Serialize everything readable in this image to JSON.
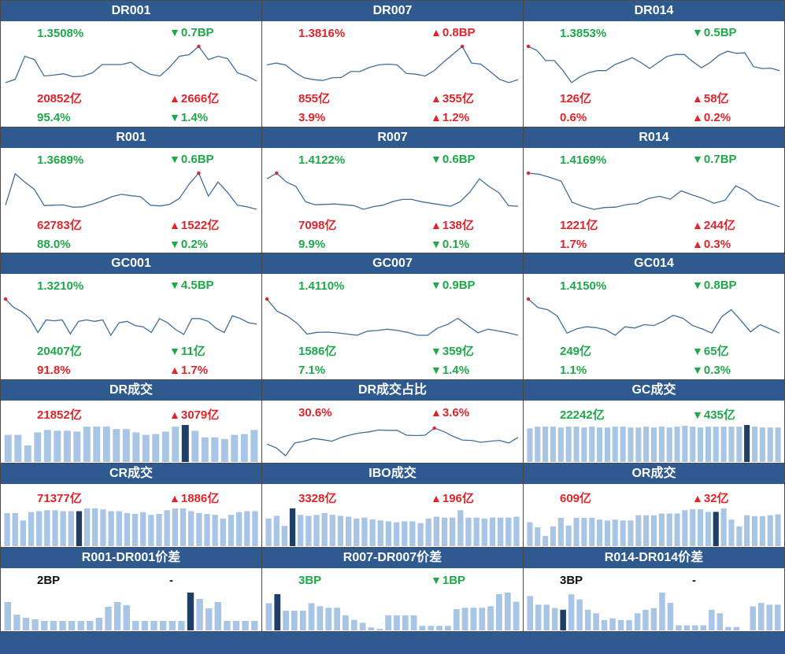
{
  "colors": {
    "header_bg": "#2e5a8f",
    "up": "#e0242b",
    "down": "#1fa84a",
    "line": "#3f6f9a",
    "bar": "#a9c5e6",
    "bar_highlight": "#1f3e66"
  },
  "panels": [
    {
      "title": "DR001",
      "kind": "line",
      "row1": {
        "left": "1.3508%",
        "left_color": "green",
        "dir": "down",
        "right": "0.7BP"
      },
      "row2": {
        "left": "20852亿",
        "left_color": "red",
        "dir": "up",
        "right": "2666亿"
      },
      "row3": {
        "left": "95.4%",
        "left_color": "green",
        "dir": "down",
        "right": "1.4%"
      },
      "series": [
        1.347,
        1.348,
        1.355,
        1.354,
        1.349,
        1.3493,
        1.3497,
        1.3488,
        1.349,
        1.35,
        1.3525,
        1.3525,
        1.3525,
        1.3532,
        1.351,
        1.3495,
        1.349,
        1.3517,
        1.355,
        1.3555,
        1.358,
        1.354,
        1.355,
        1.3543,
        1.35,
        1.349,
        1.3475
      ],
      "highlight_index": 20
    },
    {
      "title": "DR007",
      "kind": "line",
      "row1": {
        "left": "1.3816%",
        "left_color": "red",
        "dir": "up",
        "right": "0.8BP"
      },
      "row2": {
        "left": "855亿",
        "left_color": "red",
        "dir": "up",
        "right": "355亿"
      },
      "row3": {
        "left": "3.9%",
        "left_color": "red",
        "dir": "up",
        "right": "1.2%"
      },
      "series": [
        1.376,
        1.3765,
        1.376,
        1.374,
        1.3725,
        1.372,
        1.3718,
        1.3725,
        1.3726,
        1.3742,
        1.3742,
        1.3753,
        1.376,
        1.3762,
        1.376,
        1.3737,
        1.3735,
        1.373,
        1.3745,
        1.3768,
        1.3789,
        1.381,
        1.3765,
        1.3762,
        1.3742,
        1.3721,
        1.3712,
        1.372
      ],
      "highlight_index": 21
    },
    {
      "title": "DR014",
      "kind": "line",
      "row1": {
        "left": "1.3853%",
        "left_color": "green",
        "dir": "down",
        "right": "0.5BP"
      },
      "row2": {
        "left": "126亿",
        "left_color": "red",
        "dir": "up",
        "right": "58亿"
      },
      "row3": {
        "left": "0.6%",
        "left_color": "red",
        "dir": "up",
        "right": "0.2%"
      },
      "series": [
        1.392,
        1.391,
        1.3885,
        1.3885,
        1.386,
        1.383,
        1.3845,
        1.3855,
        1.386,
        1.386,
        1.3875,
        1.3883,
        1.3892,
        1.388,
        1.3865,
        1.388,
        1.3895,
        1.39,
        1.39,
        1.3882,
        1.3867,
        1.388,
        1.3898,
        1.3908,
        1.3903,
        1.3904,
        1.387,
        1.3865,
        1.3866,
        1.386
      ],
      "highlight_index": 0
    },
    {
      "title": "R001",
      "kind": "line",
      "row1": {
        "left": "1.3689%",
        "left_color": "green",
        "dir": "down",
        "right": "0.6BP"
      },
      "row2": {
        "left": "62783亿",
        "left_color": "red",
        "dir": "up",
        "right": "1522亿"
      },
      "row3": {
        "left": "88.0%",
        "left_color": "green",
        "dir": "down",
        "right": "0.2%"
      },
      "series": [
        1.36,
        1.375,
        1.371,
        1.3675,
        1.3598,
        1.36,
        1.3601,
        1.359,
        1.3592,
        1.3605,
        1.362,
        1.364,
        1.3652,
        1.3645,
        1.364,
        1.36,
        1.3596,
        1.3604,
        1.3632,
        1.37,
        1.3753,
        1.3643,
        1.3711,
        1.366,
        1.36,
        1.3592,
        1.358
      ],
      "highlight_index": 20
    },
    {
      "title": "R007",
      "kind": "line",
      "row1": {
        "left": "1.4122%",
        "left_color": "green",
        "dir": "down",
        "right": "0.6BP"
      },
      "row2": {
        "left": "7098亿",
        "left_color": "red",
        "dir": "up",
        "right": "138亿"
      },
      "row3": {
        "left": "9.9%",
        "left_color": "green",
        "dir": "down",
        "right": "0.1%"
      },
      "series": [
        1.412,
        1.4135,
        1.4112,
        1.41,
        1.406,
        1.4052,
        1.4053,
        1.4054,
        1.4052,
        1.405,
        1.404,
        1.4047,
        1.4051,
        1.406,
        1.4066,
        1.4066,
        1.406,
        1.4056,
        1.4052,
        1.4048,
        1.406,
        1.4085,
        1.412,
        1.41,
        1.4084,
        1.405,
        1.4048
      ],
      "highlight_index": 1
    },
    {
      "title": "R014",
      "kind": "line",
      "row1": {
        "left": "1.4169%",
        "left_color": "green",
        "dir": "down",
        "right": "0.7BP"
      },
      "row2": {
        "left": "1221亿",
        "left_color": "red",
        "dir": "up",
        "right": "244亿"
      },
      "row3": {
        "left": "1.7%",
        "left_color": "red",
        "dir": "up",
        "right": "0.3%"
      },
      "series": [
        1.422,
        1.4217,
        1.4208,
        1.4198,
        1.414,
        1.4128,
        1.412,
        1.4125,
        1.4126,
        1.4133,
        1.4136,
        1.415,
        1.4156,
        1.4148,
        1.4171,
        1.416,
        1.415,
        1.4137,
        1.4145,
        1.4185,
        1.417,
        1.4147,
        1.4138,
        1.4127
      ],
      "highlight_index": 0
    },
    {
      "title": "GC001",
      "kind": "line",
      "row1": {
        "left": "1.3210%",
        "left_color": "green",
        "dir": "down",
        "right": "4.5BP"
      },
      "row2": {
        "left": "20407亿",
        "left_color": "green",
        "dir": "down",
        "right": "11亿"
      },
      "row3": {
        "left": "91.8%",
        "left_color": "red",
        "dir": "up",
        "right": "1.7%"
      },
      "series": [
        1.33,
        1.327,
        1.3255,
        1.323,
        1.318,
        1.3225,
        1.3222,
        1.3225,
        1.3175,
        1.322,
        1.3225,
        1.322,
        1.3225,
        1.317,
        1.3215,
        1.322,
        1.3205,
        1.32,
        1.318,
        1.323,
        1.3215,
        1.319,
        1.3173,
        1.323,
        1.323,
        1.322,
        1.3195,
        1.318,
        1.324,
        1.323,
        1.3215,
        1.321
      ],
      "highlight_index": 0
    },
    {
      "title": "GC007",
      "kind": "line",
      "row1": {
        "left": "1.4110%",
        "left_color": "green",
        "dir": "down",
        "right": "0.9BP"
      },
      "row2": {
        "left": "1586亿",
        "left_color": "green",
        "dir": "down",
        "right": "359亿"
      },
      "row3": {
        "left": "7.1%",
        "left_color": "green",
        "dir": "down",
        "right": "1.4%"
      },
      "series": [
        1.42,
        1.415,
        1.413,
        1.41,
        1.4055,
        1.4062,
        1.4063,
        1.406,
        1.4055,
        1.405,
        1.4067,
        1.407,
        1.4075,
        1.407,
        1.4062,
        1.405,
        1.405,
        1.408,
        1.4095,
        1.412,
        1.409,
        1.406,
        1.4075,
        1.4068,
        1.406,
        1.405
      ],
      "highlight_index": 0
    },
    {
      "title": "GC014",
      "kind": "line",
      "row1": {
        "left": "1.4150%",
        "left_color": "green",
        "dir": "down",
        "right": "0.8BP"
      },
      "row2": {
        "left": "249亿",
        "left_color": "green",
        "dir": "down",
        "right": "65亿"
      },
      "row3": {
        "left": "1.1%",
        "left_color": "green",
        "dir": "down",
        "right": "0.3%"
      },
      "series": [
        1.422,
        1.42,
        1.4195,
        1.418,
        1.414,
        1.415,
        1.4155,
        1.4153,
        1.4148,
        1.4135,
        1.4155,
        1.4152,
        1.416,
        1.4158,
        1.4168,
        1.4182,
        1.4175,
        1.4158,
        1.415,
        1.414,
        1.4178,
        1.4195,
        1.417,
        1.4143,
        1.416,
        1.415,
        1.414
      ],
      "highlight_index": 0
    },
    {
      "title": "DR成交",
      "kind": "bar",
      "row1": {
        "left": "21852亿",
        "left_color": "red",
        "dir": "up",
        "right": "3079亿"
      },
      "series": [
        33,
        33,
        20,
        36,
        39,
        38,
        38,
        37,
        43,
        43,
        43,
        40,
        40,
        36,
        33,
        34,
        37,
        43,
        45,
        38,
        30,
        30,
        28,
        33,
        34,
        39
      ],
      "highlight_index": 18
    },
    {
      "title": "DR成交占比",
      "kind": "line",
      "row1": {
        "left": "30.6%",
        "left_color": "red",
        "dir": "up",
        "right": "3.6%"
      },
      "series": [
        25.5,
        24.5,
        22.4,
        25.8,
        26.3,
        27.0,
        26.7,
        26.3,
        27.3,
        28.0,
        28.5,
        28.8,
        29.3,
        29.2,
        29.2,
        27.9,
        27.8,
        27.9,
        29.8,
        28.9,
        27.6,
        26.6,
        26.5,
        26.0,
        26.3,
        26.5,
        25.8,
        27.3
      ],
      "highlight_index": 18
    },
    {
      "title": "GC成交",
      "kind": "bar",
      "row1": {
        "left": "22242亿",
        "left_color": "green",
        "dir": "down",
        "right": "435亿"
      },
      "series": [
        40,
        42,
        42,
        42,
        41,
        42,
        42,
        41,
        42,
        41,
        41,
        42,
        42,
        41,
        41,
        42,
        41,
        42,
        41,
        42,
        43,
        42,
        41,
        42,
        42,
        42,
        42,
        42,
        44,
        42,
        41,
        41,
        41
      ],
      "highlight_index": 28
    },
    {
      "title": "CR成交",
      "kind": "bar",
      "row1": {
        "left": "71377亿",
        "left_color": "red",
        "dir": "up",
        "right": "1886亿"
      },
      "series": [
        36,
        36,
        28,
        37,
        38,
        39,
        39,
        38,
        38,
        38,
        41,
        41,
        40,
        38,
        38,
        36,
        35,
        37,
        34,
        35,
        39,
        41,
        41,
        38,
        36,
        35,
        34,
        30,
        34,
        37,
        38,
        38
      ],
      "highlight_index": 9
    },
    {
      "title": "IBO成交",
      "kind": "bar",
      "row1": {
        "left": "3328亿",
        "left_color": "red",
        "dir": "up",
        "right": "196亿"
      },
      "series": [
        30,
        33,
        22,
        41,
        34,
        33,
        34,
        36,
        34,
        33,
        32,
        30,
        31,
        29,
        28,
        27,
        26,
        27,
        27,
        25,
        30,
        32,
        31,
        31,
        39,
        31,
        31,
        30,
        31,
        31,
        31,
        32
      ],
      "highlight_index": 3
    },
    {
      "title": "OR成交",
      "kind": "bar",
      "row1": {
        "left": "609亿",
        "left_color": "red",
        "dir": "up",
        "right": "32亿"
      },
      "series": [
        28,
        22,
        12,
        23,
        33,
        24,
        33,
        33,
        33,
        31,
        30,
        31,
        30,
        30,
        36,
        36,
        36,
        38,
        38,
        38,
        42,
        43,
        43,
        40,
        40,
        44,
        31,
        23,
        36,
        35,
        35,
        36,
        37
      ],
      "highlight_index": 24
    },
    {
      "title": "R001-DR001价差",
      "kind": "bar",
      "row1": {
        "left": "2BP",
        "left_color": "black",
        "dir": "none",
        "right": "-"
      },
      "series": [
        18,
        10,
        8,
        7,
        6,
        6,
        6,
        6,
        6,
        6,
        8,
        15,
        18,
        16,
        6,
        6,
        6,
        6,
        6,
        6,
        24,
        20,
        14,
        18,
        6,
        6,
        6,
        6
      ],
      "highlight_index": 20
    },
    {
      "title": "R007-DR007价差",
      "kind": "bar",
      "row1": {
        "left": "3BP",
        "left_color": "green",
        "dir": "down",
        "right": "1BP"
      },
      "series": [
        18,
        24,
        13,
        13,
        13,
        18,
        16,
        15,
        15,
        10,
        7,
        5,
        2,
        1,
        10,
        10,
        10,
        10,
        3,
        3,
        3,
        3,
        14,
        15,
        15,
        15,
        16,
        24,
        25,
        19
      ],
      "highlight_index": 1
    },
    {
      "title": "R014-DR014价差",
      "kind": "bar",
      "row1": {
        "left": "3BP",
        "left_color": "black",
        "dir": "none",
        "right": "-"
      },
      "series": [
        20,
        15,
        15,
        13,
        12,
        21,
        18,
        12,
        10,
        6,
        7,
        6,
        6,
        10,
        12,
        13,
        22,
        16,
        3,
        3,
        3,
        3,
        12,
        10,
        2,
        2,
        0,
        14,
        16,
        15,
        15
      ],
      "highlight_index": 4
    }
  ]
}
